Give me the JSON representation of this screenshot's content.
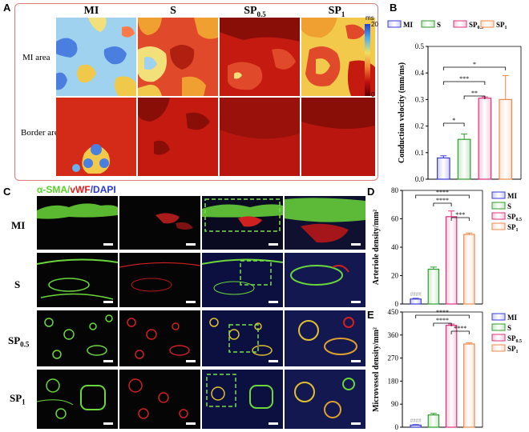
{
  "panelA": {
    "letter": "A",
    "columns": [
      "MI",
      "S",
      "SP0.5",
      "SP1"
    ],
    "column_main": [
      "MI",
      "S",
      "SP",
      "SP"
    ],
    "column_sub": [
      "",
      "",
      "0.5",
      "1"
    ],
    "rows": [
      "MI area",
      "Border area"
    ],
    "colorbar": {
      "unit": "ms",
      "max": "20",
      "min": "0"
    }
  },
  "panelC": {
    "letter": "C",
    "stain": {
      "part1": "α-SMA/",
      "part2": "vWF",
      "part3": "/DAPI"
    },
    "rows_main": [
      "MI",
      "S",
      "SP",
      "SP"
    ],
    "rows_sub": [
      "",
      "",
      "0.5",
      "1"
    ]
  },
  "chart_data": [
    {
      "panel": "B",
      "type": "bar",
      "categories": [
        "MI",
        "S",
        "SP0.5",
        "SP1"
      ],
      "values": [
        0.08,
        0.15,
        0.305,
        0.3
      ],
      "errors": [
        0.008,
        0.02,
        0.005,
        0.09
      ],
      "ylabel": "Conduction velocity (mm/ms)",
      "ylim": [
        0.0,
        0.5
      ],
      "yticks": [
        "0.0",
        "0.1",
        "0.2",
        "0.3",
        "0.4",
        "0.5"
      ],
      "legend": [
        "MI",
        "S",
        "SP0.5",
        "SP1"
      ],
      "legend_placement": "top",
      "significance": [
        {
          "from": 0,
          "to": 1,
          "label": "*"
        },
        {
          "from": 0,
          "to": 2,
          "label": "***"
        },
        {
          "from": 0,
          "to": 3,
          "label": "*"
        },
        {
          "from": 1,
          "to": 2,
          "label": "**"
        }
      ],
      "colors": [
        "#3a3ad8",
        "#2e9e2e",
        "#e0307a",
        "#ee8a4a"
      ]
    },
    {
      "panel": "D",
      "type": "bar",
      "categories": [
        "MI",
        "S",
        "SP0.5",
        "SP1"
      ],
      "values": [
        3.5,
        24.5,
        61.5,
        49.0
      ],
      "errors": [
        0.5,
        1.5,
        4.0,
        1.0
      ],
      "ylabel": "Arteriole density/mm²",
      "ylim": [
        0,
        80
      ],
      "yticks": [
        "0",
        "20",
        "40",
        "60",
        "80"
      ],
      "mi_label": "####",
      "legend": [
        "MI",
        "S",
        "SP0.5",
        "SP1"
      ],
      "legend_placement": "top-right",
      "significance": [
        {
          "from": 0,
          "to": 3,
          "label": "****"
        },
        {
          "from": 1,
          "to": 2,
          "label": "****"
        },
        {
          "from": 2,
          "to": 3,
          "label": "***"
        }
      ],
      "colors": [
        "#3a3ad8",
        "#2e9e2e",
        "#e0307a",
        "#ee8a4a"
      ]
    },
    {
      "panel": "E",
      "type": "bar",
      "categories": [
        "MI",
        "S",
        "SP0.5",
        "SP1"
      ],
      "values": [
        8,
        48,
        398,
        325
      ],
      "errors": [
        2,
        6,
        5,
        5
      ],
      "ylabel": "Microvessel density/mm²",
      "ylim": [
        0,
        450
      ],
      "yticks": [
        "0",
        "90",
        "180",
        "270",
        "360",
        "450"
      ],
      "mi_label": "####",
      "legend": [
        "MI",
        "S",
        "SP0.5",
        "SP1"
      ],
      "legend_placement": "top-right",
      "significance": [
        {
          "from": 0,
          "to": 3,
          "label": "****"
        },
        {
          "from": 1,
          "to": 2,
          "label": "****"
        },
        {
          "from": 2,
          "to": 3,
          "label": "****"
        }
      ],
      "colors": [
        "#3a3ad8",
        "#2e9e2e",
        "#e0307a",
        "#ee8a4a"
      ]
    }
  ]
}
